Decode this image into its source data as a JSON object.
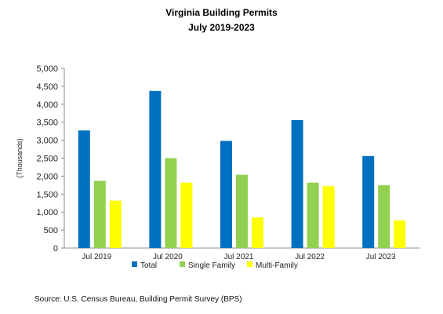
{
  "chart_data": {
    "type": "bar",
    "title": "Virginia Building Permits",
    "subtitle": "July 2019-2023",
    "ylabel": "(Thousands)",
    "xlabel": "",
    "categories": [
      "Jul 2019",
      "Jul 2020",
      "Jul 2021",
      "Jul 2022",
      "Jul 2023"
    ],
    "ylim": [
      0,
      5000
    ],
    "yticks": [
      "0",
      "500",
      "1,000",
      "1,500",
      "2,000",
      "2,500",
      "3,000",
      "3,500",
      "4,000",
      "4,500",
      "5,000"
    ],
    "grid": false,
    "legend_position": "bottom",
    "series": [
      {
        "name": "Total",
        "color": "#0070C0",
        "values": [
          3270,
          4370,
          2980,
          3560,
          2560
        ]
      },
      {
        "name": "Single Family",
        "color": "#92D050",
        "values": [
          1870,
          2500,
          2040,
          1820,
          1750
        ]
      },
      {
        "name": "Multi-Family",
        "color": "#FFFF00",
        "values": [
          1320,
          1820,
          850,
          1720,
          770
        ]
      }
    ],
    "source": "Source: U.S. Census Bureau, Building Permit Survey (BPS)"
  }
}
